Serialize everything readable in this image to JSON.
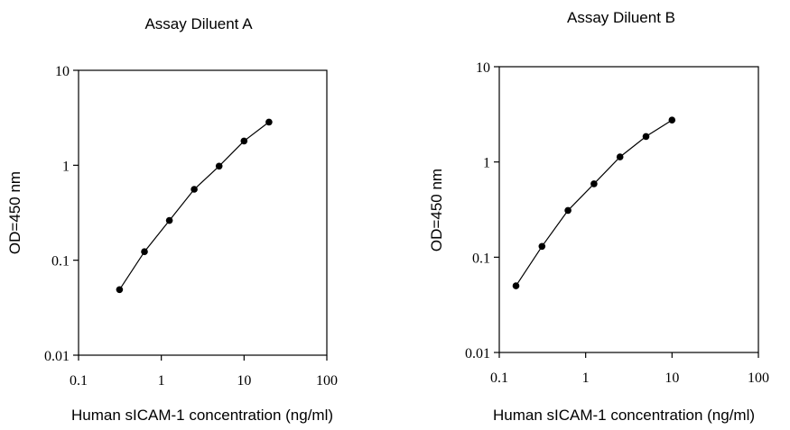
{
  "chart_data": [
    {
      "type": "line",
      "title": "Assay Diluent A",
      "xlabel": "Human sICAM-1 concentration (ng/ml)",
      "ylabel": "OD=450 nm",
      "xscale": "log",
      "yscale": "log",
      "xlim": [
        0.1,
        100
      ],
      "ylim": [
        0.01,
        10
      ],
      "xticks": [
        "0.1",
        "1",
        "10",
        "100"
      ],
      "yticks": [
        "0.01",
        "0.1",
        "1",
        "10"
      ],
      "grid": false,
      "series": [
        {
          "x": [
            0.3125,
            0.625,
            1.25,
            2.5,
            5,
            10,
            20
          ],
          "y": [
            0.049,
            0.123,
            0.262,
            0.558,
            0.98,
            1.8,
            2.85
          ]
        }
      ]
    },
    {
      "type": "line",
      "title": "Assay Diluent B",
      "xlabel": "Human sICAM-1 concentration (ng/ml)",
      "ylabel": "OD=450 nm",
      "xscale": "log",
      "yscale": "log",
      "xlim": [
        0.1,
        100
      ],
      "ylim": [
        0.01,
        10
      ],
      "xticks": [
        "0.1",
        "1",
        "10",
        "100"
      ],
      "yticks": [
        "0.01",
        "0.1",
        "1",
        "10"
      ],
      "grid": false,
      "series": [
        {
          "x": [
            0.156,
            0.3125,
            0.625,
            1.25,
            2.5,
            5,
            10
          ],
          "y": [
            0.05,
            0.13,
            0.31,
            0.59,
            1.13,
            1.85,
            2.75
          ]
        }
      ]
    }
  ]
}
